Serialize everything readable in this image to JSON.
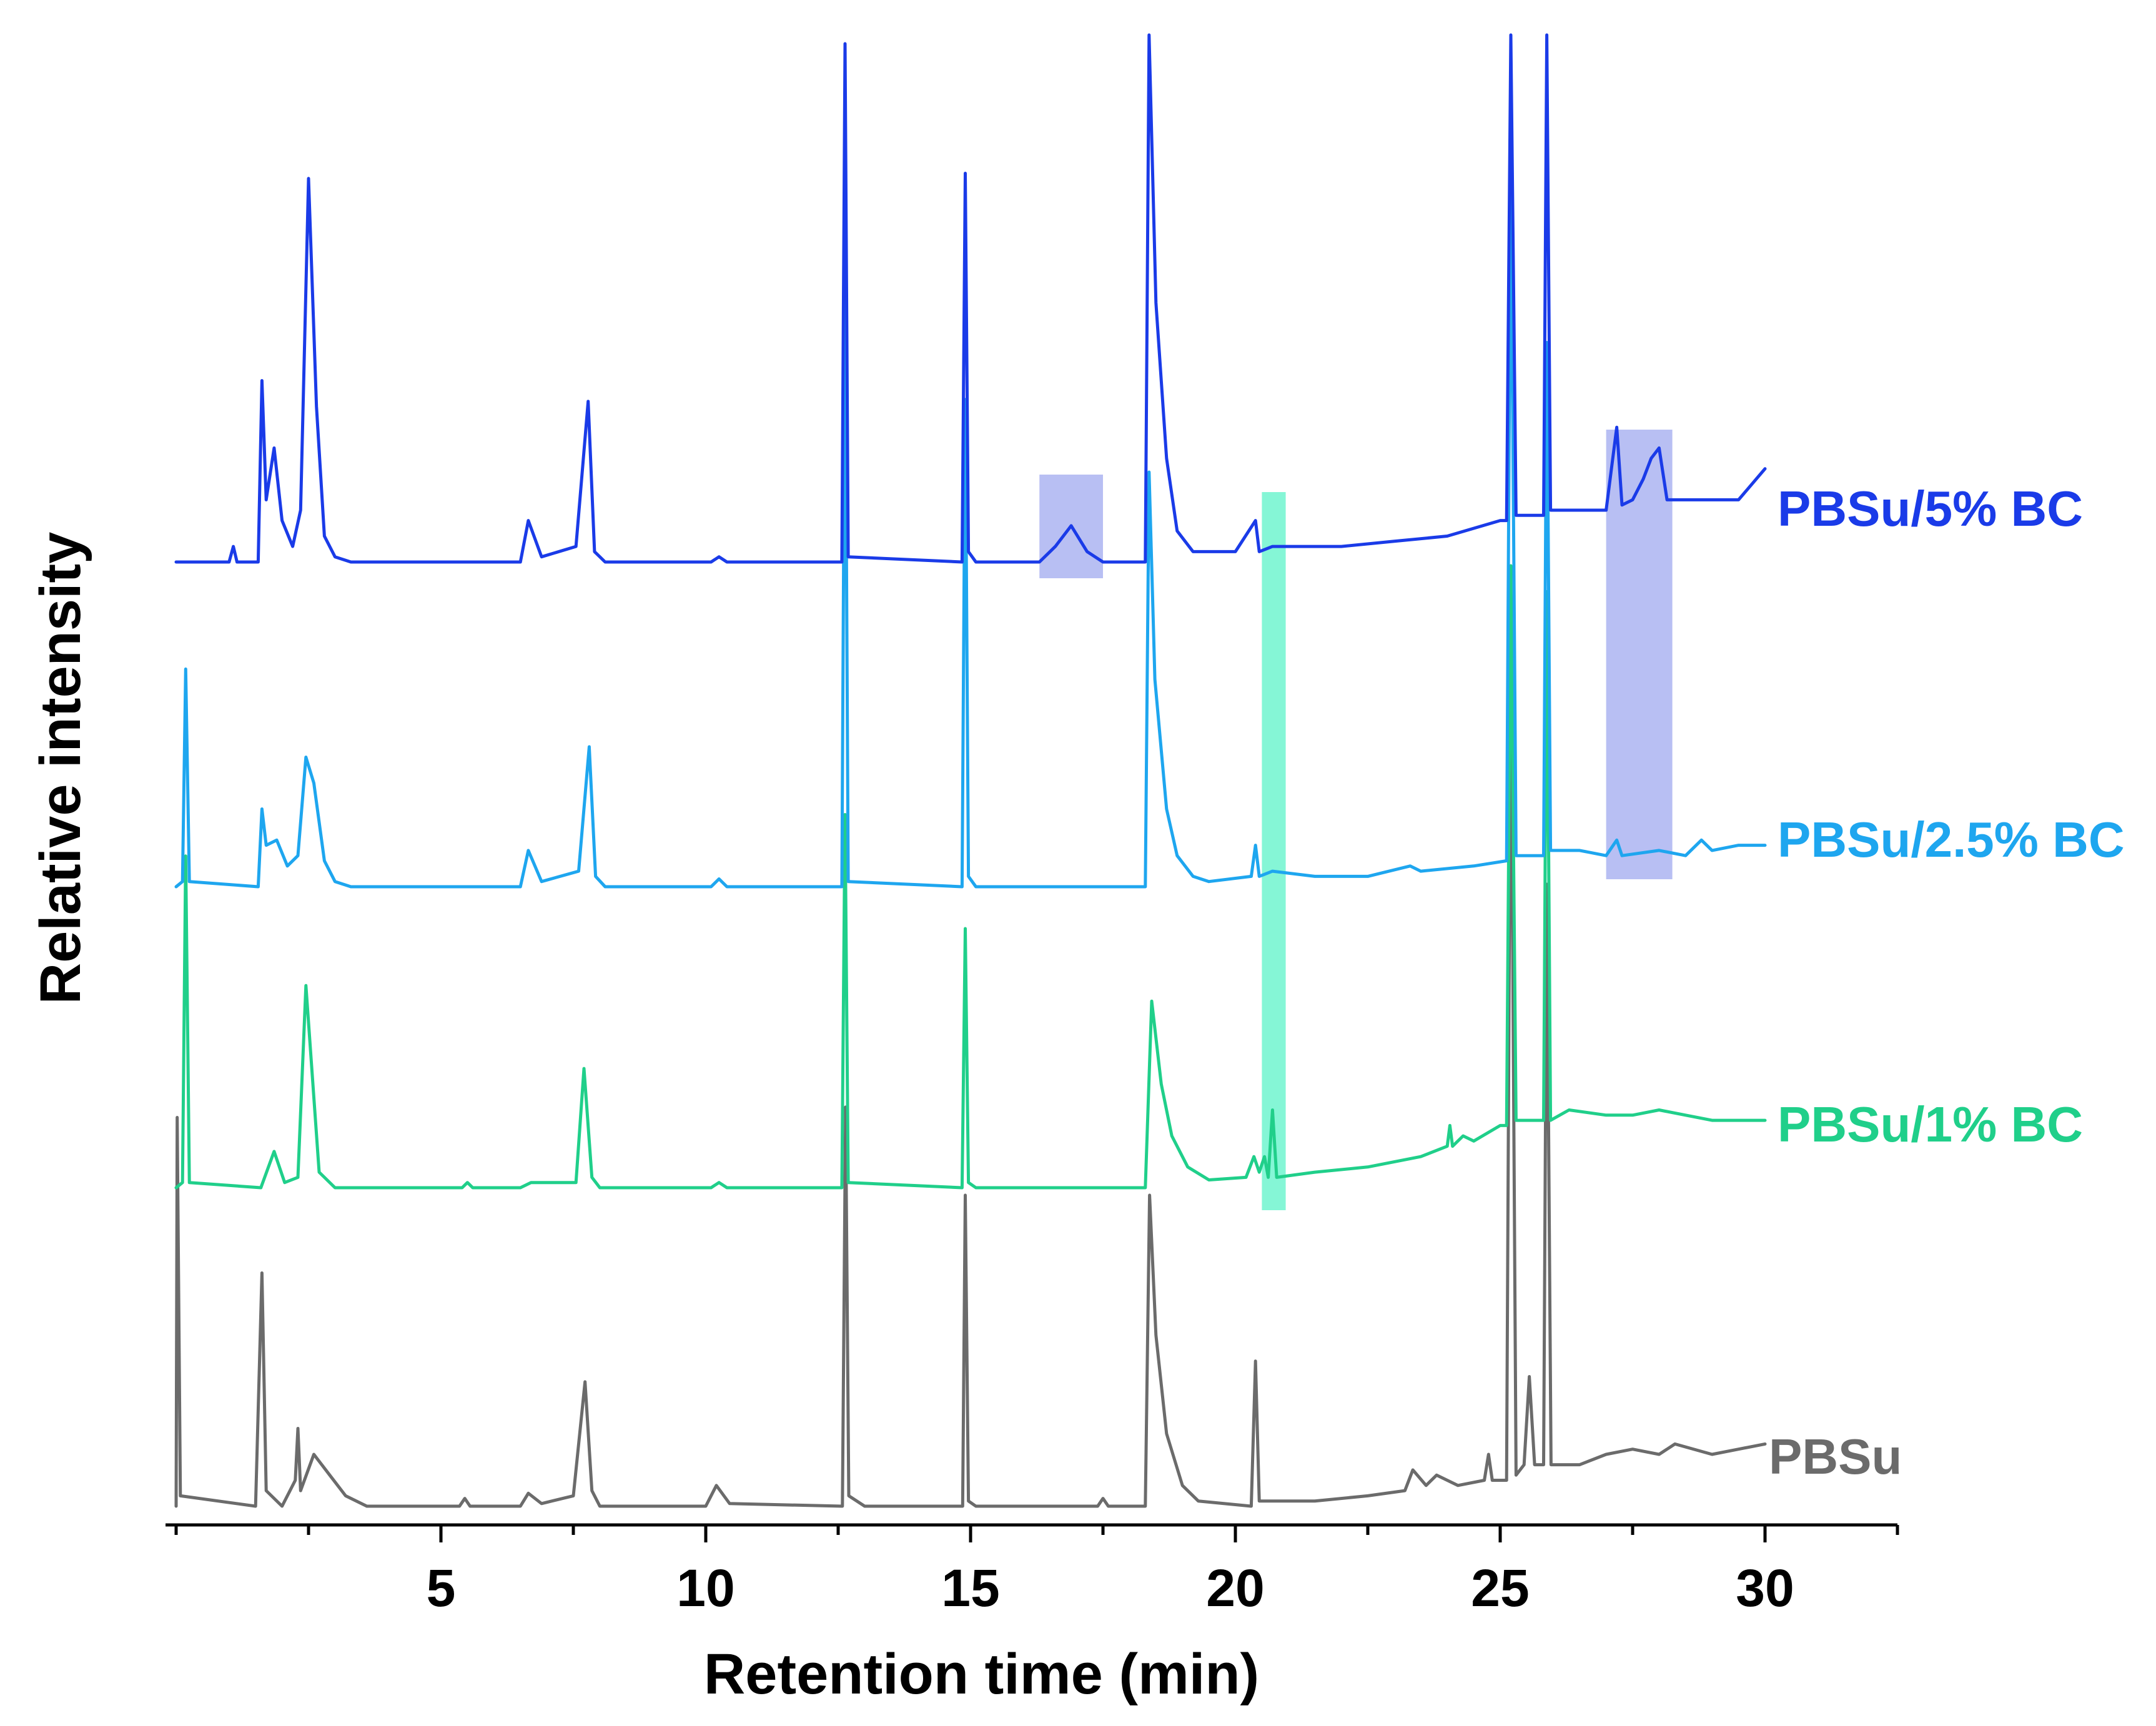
{
  "chart_data": {
    "type": "line",
    "title": "",
    "xlabel": "Retention time (min)",
    "ylabel": "Relative intensity",
    "xlim": [
      -0.2,
      32.5
    ],
    "xticks": [
      5,
      10,
      15,
      20,
      25,
      30
    ],
    "grid": false,
    "legend": "inline labels at right end of each trace",
    "series": [
      {
        "name": "PBSu",
        "color": "#6b6b6b",
        "baseline": 0,
        "points": [
          [
            0,
            0
          ],
          [
            0.02,
            0.75
          ],
          [
            0.08,
            0.02
          ],
          [
            1.5,
            0
          ],
          [
            1.62,
            0.45
          ],
          [
            1.7,
            0.03
          ],
          [
            2.0,
            0
          ],
          [
            2.25,
            0.05
          ],
          [
            2.3,
            0.15
          ],
          [
            2.35,
            0.03
          ],
          [
            2.6,
            0.1
          ],
          [
            2.9,
            0.06
          ],
          [
            3.2,
            0.02
          ],
          [
            3.6,
            0
          ],
          [
            5.35,
            0
          ],
          [
            5.45,
            0.015
          ],
          [
            5.55,
            0
          ],
          [
            6.5,
            0
          ],
          [
            6.65,
            0.025
          ],
          [
            6.9,
            0.005
          ],
          [
            7.5,
            0.02
          ],
          [
            7.72,
            0.24
          ],
          [
            7.85,
            0.03
          ],
          [
            8.0,
            0
          ],
          [
            10.0,
            0
          ],
          [
            10.2,
            0.04
          ],
          [
            10.45,
            0.005
          ],
          [
            12.58,
            0
          ],
          [
            12.64,
            0.77
          ],
          [
            12.7,
            0.02
          ],
          [
            13.0,
            0
          ],
          [
            14.85,
            0
          ],
          [
            14.9,
            0.6
          ],
          [
            14.96,
            0.01
          ],
          [
            15.1,
            0
          ],
          [
            17.4,
            0
          ],
          [
            17.5,
            0.015
          ],
          [
            17.6,
            0
          ],
          [
            18.3,
            0
          ],
          [
            18.38,
            0.6
          ],
          [
            18.5,
            0.33
          ],
          [
            18.7,
            0.14
          ],
          [
            19.0,
            0.04
          ],
          [
            19.3,
            0.01
          ],
          [
            20.3,
            0
          ],
          [
            20.38,
            0.28
          ],
          [
            20.45,
            0.01
          ],
          [
            21.5,
            0.01
          ],
          [
            22.5,
            0.02
          ],
          [
            23.2,
            0.03
          ],
          [
            23.35,
            0.07
          ],
          [
            23.6,
            0.04
          ],
          [
            23.8,
            0.06
          ],
          [
            24.2,
            0.04
          ],
          [
            24.7,
            0.05
          ],
          [
            24.78,
            0.1
          ],
          [
            24.85,
            0.05
          ],
          [
            25.12,
            0.05
          ],
          [
            25.2,
            1.65
          ],
          [
            25.3,
            0.06
          ],
          [
            25.45,
            0.08
          ],
          [
            25.55,
            0.25
          ],
          [
            25.65,
            0.08
          ],
          [
            25.82,
            0.08
          ],
          [
            25.88,
            1.2
          ],
          [
            25.96,
            0.08
          ],
          [
            26.5,
            0.08
          ],
          [
            27.0,
            0.1
          ],
          [
            27.5,
            0.11
          ],
          [
            28.0,
            0.1
          ],
          [
            28.3,
            0.12
          ],
          [
            29.0,
            0.1
          ],
          [
            29.5,
            0.11
          ],
          [
            30.0,
            0.12
          ]
        ]
      },
      {
        "name": "PBSu/1% BC",
        "color": "#20cf8a",
        "baseline": 0,
        "points": [
          [
            0,
            0
          ],
          [
            0.12,
            0.01
          ],
          [
            0.18,
            0.64
          ],
          [
            0.25,
            0.01
          ],
          [
            1.6,
            0
          ],
          [
            1.85,
            0.07
          ],
          [
            2.05,
            0.01
          ],
          [
            2.3,
            0.02
          ],
          [
            2.45,
            0.39
          ],
          [
            2.7,
            0.03
          ],
          [
            3.0,
            0
          ],
          [
            5.4,
            0
          ],
          [
            5.5,
            0.01
          ],
          [
            5.6,
            0
          ],
          [
            6.5,
            0
          ],
          [
            6.7,
            0.01
          ],
          [
            7.55,
            0.01
          ],
          [
            7.7,
            0.23
          ],
          [
            7.85,
            0.02
          ],
          [
            8.0,
            0
          ],
          [
            10.1,
            0
          ],
          [
            10.25,
            0.01
          ],
          [
            10.4,
            0
          ],
          [
            12.57,
            0
          ],
          [
            12.63,
            0.72
          ],
          [
            12.69,
            0.01
          ],
          [
            14.84,
            0
          ],
          [
            14.9,
            0.5
          ],
          [
            14.96,
            0.01
          ],
          [
            15.1,
            0
          ],
          [
            18.3,
            0
          ],
          [
            18.42,
            0.36
          ],
          [
            18.6,
            0.2
          ],
          [
            18.8,
            0.1
          ],
          [
            19.1,
            0.04
          ],
          [
            19.5,
            0.015
          ],
          [
            20.2,
            0.02
          ],
          [
            20.35,
            0.06
          ],
          [
            20.45,
            0.03
          ],
          [
            20.55,
            0.06
          ],
          [
            20.62,
            0.02
          ],
          [
            20.7,
            0.15
          ],
          [
            20.78,
            0.02
          ],
          [
            21.5,
            0.03
          ],
          [
            22.5,
            0.04
          ],
          [
            23.5,
            0.06
          ],
          [
            24.0,
            0.08
          ],
          [
            24.05,
            0.12
          ],
          [
            24.1,
            0.08
          ],
          [
            24.3,
            0.1
          ],
          [
            24.5,
            0.09
          ],
          [
            25.0,
            0.12
          ],
          [
            25.12,
            0.12
          ],
          [
            25.2,
            1.2
          ],
          [
            25.3,
            0.13
          ],
          [
            25.82,
            0.13
          ],
          [
            25.88,
            1.15
          ],
          [
            25.95,
            0.13
          ],
          [
            26.3,
            0.15
          ],
          [
            27.0,
            0.14
          ],
          [
            27.5,
            0.14
          ],
          [
            28.0,
            0.15
          ],
          [
            28.5,
            0.14
          ],
          [
            29.0,
            0.13
          ],
          [
            29.5,
            0.13
          ],
          [
            30.0,
            0.13
          ]
        ]
      },
      {
        "name": "PBSu/2.5% BC",
        "color": "#1ea6ef",
        "baseline": 0,
        "points": [
          [
            0,
            0
          ],
          [
            0.12,
            0.01
          ],
          [
            0.18,
            0.42
          ],
          [
            0.25,
            0.01
          ],
          [
            1.55,
            0
          ],
          [
            1.62,
            0.15
          ],
          [
            1.7,
            0.08
          ],
          [
            1.9,
            0.09
          ],
          [
            2.1,
            0.04
          ],
          [
            2.3,
            0.06
          ],
          [
            2.45,
            0.25
          ],
          [
            2.6,
            0.2
          ],
          [
            2.8,
            0.05
          ],
          [
            3.0,
            0.01
          ],
          [
            3.3,
            0
          ],
          [
            6.5,
            0
          ],
          [
            6.65,
            0.07
          ],
          [
            6.9,
            0.01
          ],
          [
            7.6,
            0.03
          ],
          [
            7.8,
            0.27
          ],
          [
            7.92,
            0.02
          ],
          [
            8.1,
            0
          ],
          [
            10.1,
            0
          ],
          [
            10.25,
            0.015
          ],
          [
            10.4,
            0
          ],
          [
            12.57,
            0
          ],
          [
            12.63,
            1.15
          ],
          [
            12.69,
            0.01
          ],
          [
            14.84,
            0
          ],
          [
            14.9,
            0.94
          ],
          [
            14.96,
            0.02
          ],
          [
            15.1,
            0
          ],
          [
            18.3,
            0
          ],
          [
            18.37,
            0.8
          ],
          [
            18.48,
            0.4
          ],
          [
            18.7,
            0.15
          ],
          [
            18.9,
            0.06
          ],
          [
            19.2,
            0.02
          ],
          [
            19.5,
            0.01
          ],
          [
            20.3,
            0.02
          ],
          [
            20.38,
            0.08
          ],
          [
            20.45,
            0.02
          ],
          [
            20.7,
            0.03
          ],
          [
            21.5,
            0.02
          ],
          [
            22.5,
            0.02
          ],
          [
            23.3,
            0.04
          ],
          [
            23.5,
            0.03
          ],
          [
            24.5,
            0.04
          ],
          [
            25.12,
            0.05
          ],
          [
            25.2,
            1.4
          ],
          [
            25.3,
            0.06
          ],
          [
            25.82,
            0.06
          ],
          [
            25.88,
            1.05
          ],
          [
            25.95,
            0.07
          ],
          [
            26.5,
            0.07
          ],
          [
            27.0,
            0.06
          ],
          [
            27.2,
            0.09
          ],
          [
            27.3,
            0.06
          ],
          [
            28.0,
            0.07
          ],
          [
            28.5,
            0.06
          ],
          [
            28.8,
            0.09
          ],
          [
            29.0,
            0.07
          ],
          [
            29.5,
            0.08
          ],
          [
            30.0,
            0.08
          ]
        ]
      },
      {
        "name": "PBSu/5% BC",
        "color": "#1a3be8",
        "baseline": 0,
        "points": [
          [
            0,
            0
          ],
          [
            1.0,
            0
          ],
          [
            1.08,
            0.03
          ],
          [
            1.15,
            0
          ],
          [
            1.55,
            0
          ],
          [
            1.62,
            0.35
          ],
          [
            1.7,
            0.12
          ],
          [
            1.85,
            0.22
          ],
          [
            2.0,
            0.08
          ],
          [
            2.2,
            0.03
          ],
          [
            2.35,
            0.1
          ],
          [
            2.5,
            0.74
          ],
          [
            2.65,
            0.3
          ],
          [
            2.8,
            0.05
          ],
          [
            3.0,
            0.01
          ],
          [
            3.3,
            0
          ],
          [
            6.5,
            0
          ],
          [
            6.65,
            0.08
          ],
          [
            6.9,
            0.01
          ],
          [
            7.55,
            0.03
          ],
          [
            7.78,
            0.31
          ],
          [
            7.9,
            0.02
          ],
          [
            8.1,
            0
          ],
          [
            10.1,
            0
          ],
          [
            10.25,
            0.01
          ],
          [
            10.4,
            0
          ],
          [
            12.57,
            0
          ],
          [
            12.63,
            1.0
          ],
          [
            12.69,
            0.01
          ],
          [
            14.84,
            0
          ],
          [
            14.9,
            0.75
          ],
          [
            14.96,
            0.02
          ],
          [
            15.1,
            0
          ],
          [
            16.3,
            0
          ],
          [
            16.6,
            0.03
          ],
          [
            16.9,
            0.07
          ],
          [
            17.2,
            0.02
          ],
          [
            17.5,
            0
          ],
          [
            18.3,
            0
          ],
          [
            18.37,
            1.05
          ],
          [
            18.5,
            0.5
          ],
          [
            18.7,
            0.2
          ],
          [
            18.9,
            0.06
          ],
          [
            19.2,
            0.02
          ],
          [
            20.0,
            0.02
          ],
          [
            20.38,
            0.08
          ],
          [
            20.45,
            0.02
          ],
          [
            20.7,
            0.03
          ],
          [
            21.0,
            0.03
          ],
          [
            22.0,
            0.03
          ],
          [
            23.0,
            0.04
          ],
          [
            24.0,
            0.05
          ],
          [
            25.0,
            0.08
          ],
          [
            25.12,
            0.08
          ],
          [
            25.2,
            1.68
          ],
          [
            25.3,
            0.09
          ],
          [
            25.82,
            0.09
          ],
          [
            25.88,
            1.25
          ],
          [
            25.95,
            0.1
          ],
          [
            26.5,
            0.1
          ],
          [
            27.0,
            0.1
          ],
          [
            27.2,
            0.26
          ],
          [
            27.3,
            0.11
          ],
          [
            27.5,
            0.12
          ],
          [
            27.7,
            0.16
          ],
          [
            27.85,
            0.2
          ],
          [
            28.0,
            0.22
          ],
          [
            28.15,
            0.12
          ],
          [
            28.5,
            0.12
          ],
          [
            29.0,
            0.12
          ],
          [
            29.5,
            0.12
          ],
          [
            30.0,
            0.18
          ]
        ]
      }
    ],
    "highlights": [
      {
        "name": "highlight-16-17min",
        "x": [
          16.3,
          17.5
        ],
        "color": "#b4bcf2",
        "opacity": 0.95
      },
      {
        "name": "highlight-20.5-21min",
        "x": [
          20.5,
          20.95
        ],
        "color": "#7ef5d4",
        "opacity": 0.95
      },
      {
        "name": "highlight-27-28min",
        "x": [
          27.0,
          28.25
        ],
        "color": "#b4bcf2",
        "opacity": 0.95
      }
    ]
  }
}
